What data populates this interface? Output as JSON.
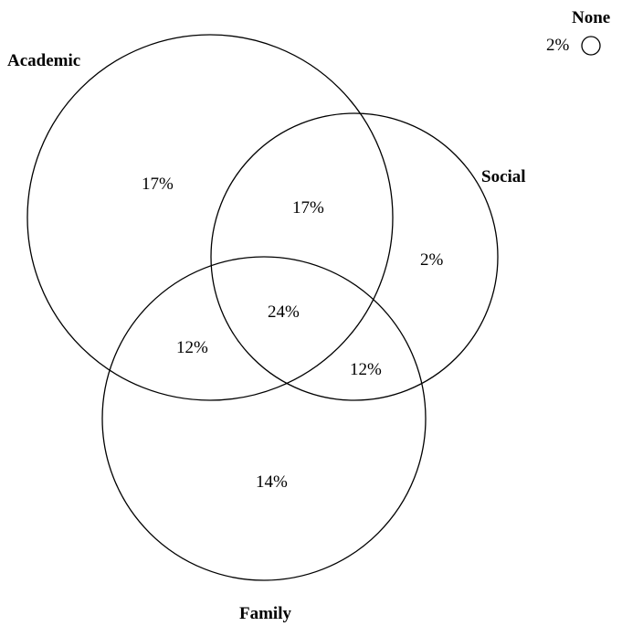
{
  "diagram": {
    "type": "venn",
    "line_color": "#000000",
    "background": "#ffffff",
    "sets": {
      "academic": "Academic",
      "social": "Social",
      "family": "Family",
      "none": "None"
    },
    "regions": {
      "academic_only": "17%",
      "academic_social": "17%",
      "social_only": "2%",
      "academic_social_family": "24%",
      "academic_family": "12%",
      "social_family": "12%",
      "family_only": "14%",
      "none": "2%"
    }
  }
}
